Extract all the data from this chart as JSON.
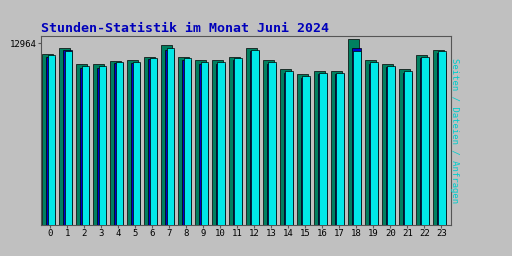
{
  "title": "Stunden-Statistik im Monat Juni 2024",
  "ylabel_right": "Seiten / Dateien / Anfragen",
  "xlabel_values": [
    0,
    1,
    2,
    3,
    4,
    5,
    6,
    7,
    8,
    9,
    10,
    11,
    12,
    13,
    14,
    15,
    16,
    17,
    18,
    19,
    20,
    21,
    22,
    23
  ],
  "ytick_label": "12964",
  "background_color": "#c0c0c0",
  "plot_bg_color": "#c0c0c0",
  "bar_color_teal": "#008060",
  "bar_color_blue": "#0000cc",
  "bar_color_cyan": "#00e8e8",
  "bar_edgecolor": "#000000",
  "title_color": "#0000bb",
  "ylabel_right_color": "#00cccc",
  "seiten": [
    0.965,
    0.995,
    0.905,
    0.905,
    0.925,
    0.93,
    0.945,
    1.015,
    0.945,
    0.93,
    0.93,
    0.945,
    0.998,
    0.93,
    0.878,
    0.848,
    0.868,
    0.868,
    1.045,
    0.928,
    0.908,
    0.878,
    0.958,
    0.985
  ],
  "dateien": [
    0.945,
    0.985,
    0.885,
    0.885,
    0.915,
    0.915,
    0.935,
    0.988,
    0.928,
    0.908,
    0.908,
    0.928,
    0.978,
    0.908,
    0.858,
    0.828,
    0.848,
    0.848,
    0.998,
    0.908,
    0.888,
    0.858,
    0.938,
    0.968
  ],
  "anfragen": [
    0.958,
    0.978,
    0.898,
    0.898,
    0.918,
    0.918,
    0.938,
    0.998,
    0.938,
    0.918,
    0.918,
    0.938,
    0.988,
    0.918,
    0.868,
    0.838,
    0.858,
    0.858,
    0.978,
    0.918,
    0.898,
    0.868,
    0.948,
    0.978
  ],
  "ymax": 1.065,
  "ymin": 0.0,
  "figsize": [
    5.12,
    2.56
  ],
  "dpi": 100
}
